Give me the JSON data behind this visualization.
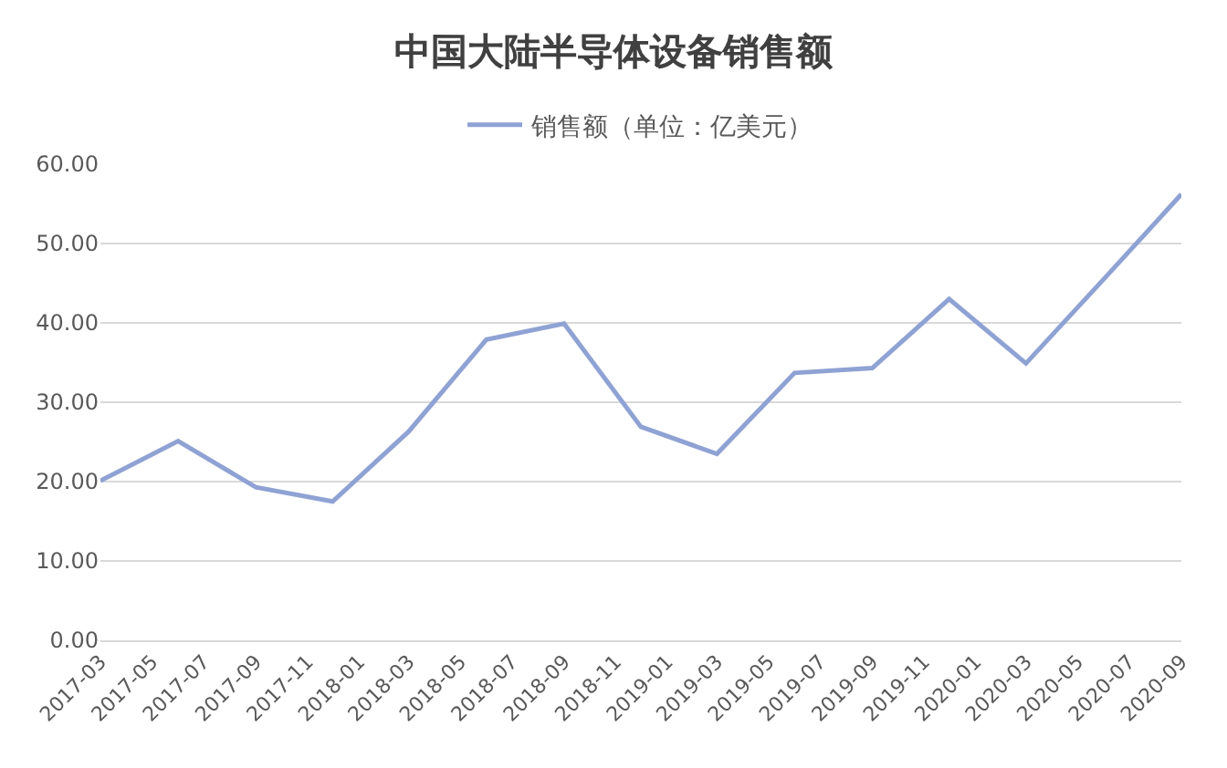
{
  "chart_data": {
    "type": "line",
    "title": "中国大陆半导体设备销售额",
    "x": [
      "2017-03",
      "2017-06",
      "2017-09",
      "2017-12",
      "2018-03",
      "2018-06",
      "2018-09",
      "2018-12",
      "2019-03",
      "2019-06",
      "2019-09",
      "2019-12",
      "2020-03",
      "2020-06",
      "2020-09"
    ],
    "series": [
      {
        "name": "销售额（单位：亿美元）",
        "color": "#8fa2d4",
        "values": [
          20.1,
          25.1,
          19.3,
          17.5,
          26.3,
          37.9,
          39.9,
          26.9,
          23.5,
          33.7,
          34.3,
          43.0,
          34.9,
          45.5,
          56.2
        ]
      }
    ],
    "xlim": [
      "2017-03",
      "2020-09"
    ],
    "xticks": [
      "2017-03",
      "2017-05",
      "2017-07",
      "2017-09",
      "2017-11",
      "2018-01",
      "2018-03",
      "2018-05",
      "2018-07",
      "2018-09",
      "2018-11",
      "2019-01",
      "2019-03",
      "2019-05",
      "2019-07",
      "2019-09",
      "2019-11",
      "2020-01",
      "2020-03",
      "2020-05",
      "2020-07",
      "2020-09"
    ],
    "ylim": [
      0,
      60
    ],
    "yticks": [
      {
        "value": 0,
        "label": "0.00"
      },
      {
        "value": 10,
        "label": "10.00"
      },
      {
        "value": 20,
        "label": "20.00"
      },
      {
        "value": 30,
        "label": "30.00"
      },
      {
        "value": 40,
        "label": "40.00"
      },
      {
        "value": 50,
        "label": "50.00"
      },
      {
        "value": 60,
        "label": "60.00"
      }
    ],
    "grid": "y",
    "legend": "top",
    "marker": "none",
    "line_style": "solid"
  }
}
